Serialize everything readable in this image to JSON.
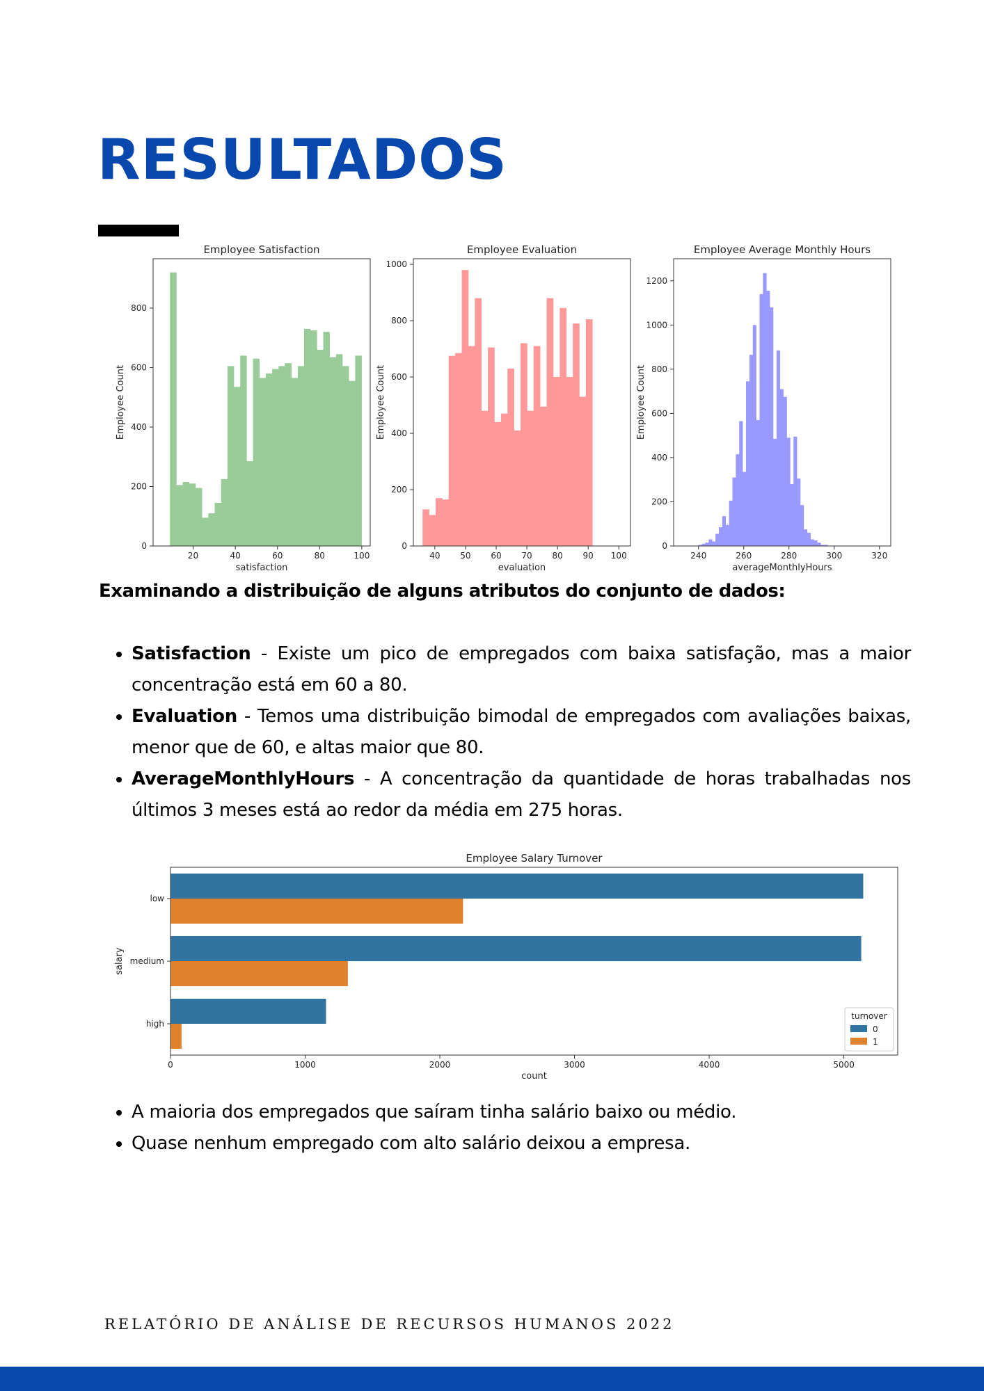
{
  "page": {
    "title": "RESULTADOS",
    "accent_color": "#0847ad",
    "intro_heading": "Examinando a distribuição de alguns atributos do conjunto de dados:",
    "attributes": [
      {
        "name": "Satisfaction",
        "text": " - Existe um pico de empregados com baixa satisfação, mas a maior concentração está em 60 a 80."
      },
      {
        "name": "Evaluation",
        "text": " - Temos uma distribuição bimodal de empregados com avaliações baixas, menor que de 60, e altas maior que 80."
      },
      {
        "name": "AverageMonthlyHours",
        "text": " - A concentração da quantidade de horas trabalhadas nos últimos 3 meses está ao redor da média em 275 horas."
      }
    ],
    "salary_notes": [
      "A maioria dos empregados que saíram tinha salário baixo ou médio.",
      "Quase nenhum empregado com alto salário deixou a empresa."
    ],
    "footer": "RELATÓRIO DE ANÁLISE DE RECURSOS HUMANOS 2022"
  },
  "chart_data": [
    {
      "type": "bar",
      "subtype": "histogram",
      "title": "Employee Satisfaction",
      "xlabel": "satisfaction",
      "ylabel": "Employee Count",
      "color": "#99cc99",
      "bin_start": 9,
      "bin_width": 3.03,
      "values": [
        920,
        205,
        215,
        210,
        195,
        95,
        110,
        145,
        225,
        605,
        535,
        640,
        285,
        630,
        565,
        580,
        595,
        605,
        615,
        565,
        605,
        730,
        725,
        660,
        720,
        635,
        645,
        605,
        555,
        640
      ],
      "xlim": [
        1,
        104
      ],
      "ylim": [
        0,
        966
      ],
      "xticks": [
        20,
        40,
        60,
        80,
        100
      ],
      "yticks": [
        0,
        200,
        400,
        600,
        800
      ],
      "grid": false
    },
    {
      "type": "bar",
      "subtype": "histogram",
      "title": "Employee Evaluation",
      "xlabel": "evaluation",
      "ylabel": "Employee Count",
      "color": "#ff9999",
      "bin_start": 36,
      "bin_width": 2.13,
      "values": [
        130,
        110,
        170,
        165,
        675,
        685,
        980,
        710,
        880,
        480,
        705,
        440,
        470,
        630,
        410,
        720,
        480,
        710,
        495,
        880,
        600,
        845,
        600,
        790,
        530,
        805
      ],
      "xlim": [
        33,
        103.8
      ],
      "ylim": [
        0,
        1020
      ],
      "xticks": [
        40,
        50,
        60,
        70,
        80,
        90,
        100
      ],
      "yticks": [
        0,
        200,
        400,
        600,
        800,
        1000
      ],
      "grid": false
    },
    {
      "type": "bar",
      "subtype": "histogram",
      "title": "Employee Average Monthly Hours",
      "xlabel": "averageMonthlyHours",
      "ylabel": "Employee Count",
      "color": "#9999ff",
      "bin_start": 240,
      "bin_width": 1.5,
      "values": [
        5,
        10,
        15,
        30,
        20,
        55,
        85,
        135,
        95,
        205,
        310,
        415,
        565,
        335,
        745,
        865,
        1000,
        570,
        1140,
        1235,
        1155,
        1080,
        485,
        885,
        710,
        675,
        490,
        280,
        495,
        305,
        185,
        75,
        60,
        30,
        25,
        15,
        5,
        5
      ],
      "xlim": [
        229,
        325
      ],
      "ylim": [
        0,
        1300
      ],
      "xticks": [
        240,
        260,
        280,
        300,
        320
      ],
      "yticks": [
        0,
        200,
        400,
        600,
        800,
        1000,
        1200
      ],
      "grid": false
    },
    {
      "type": "bar",
      "orientation": "horizontal",
      "title": "Employee Salary Turnover",
      "xlabel": "count",
      "ylabel": "salary",
      "categories": [
        "low",
        "medium",
        "high"
      ],
      "series": [
        {
          "name": "0",
          "color": "#3274a1",
          "values": [
            5144,
            5129,
            1155
          ]
        },
        {
          "name": "1",
          "color": "#e1812c",
          "values": [
            2172,
            1317,
            82
          ]
        }
      ],
      "xlim": [
        0,
        5400
      ],
      "xticks": [
        0,
        1000,
        2000,
        3000,
        4000,
        5000
      ],
      "legend": {
        "title": "turnover",
        "placement": "lower-right"
      },
      "grid": false
    }
  ]
}
